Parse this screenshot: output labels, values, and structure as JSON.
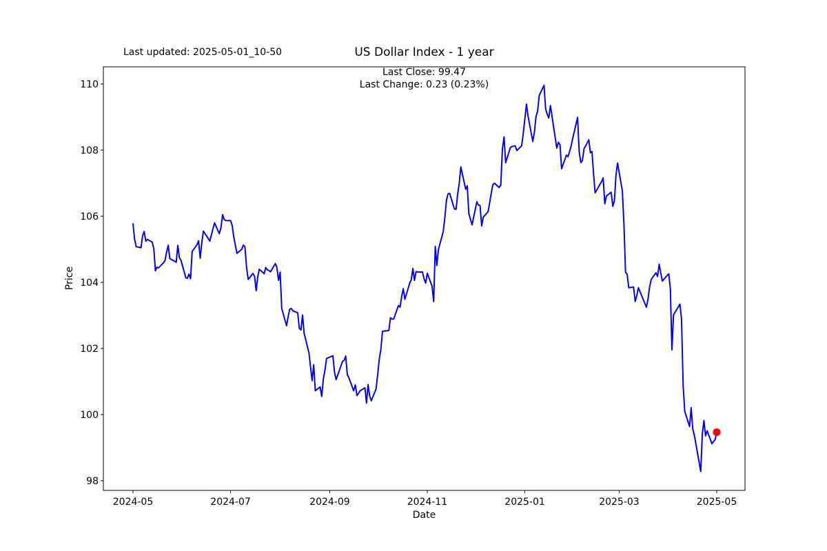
{
  "figure": {
    "last_updated": "Last updated: 2025-05-01_10-50",
    "title": "US Dollar Index - 1 year",
    "annotation_close": "Last Close: 99.47",
    "annotation_change": "Last Change: 0.23 (0.23%)"
  },
  "chart_data": {
    "type": "line",
    "title": "US Dollar Index - 1 year",
    "xlabel": "Date",
    "ylabel": "Price",
    "legend": "none",
    "grid": false,
    "line_color": "#0000ff",
    "last_point_marker_color": "#ff0000",
    "last_close": 99.47,
    "last_change": 0.23,
    "last_change_pct": "0.23%",
    "ylim": [
      97.7,
      110.5
    ],
    "xlim": [
      "2024-04-12",
      "2025-05-19"
    ],
    "y_ticks": [
      98,
      100,
      102,
      104,
      106,
      108,
      110
    ],
    "x_ticks": [
      {
        "date": "2024-05-01",
        "label": "2024-05"
      },
      {
        "date": "2024-07-01",
        "label": "2024-07"
      },
      {
        "date": "2024-09-01",
        "label": "2024-09"
      },
      {
        "date": "2024-11-01",
        "label": "2024-11"
      },
      {
        "date": "2025-01-01",
        "label": "2025-01"
      },
      {
        "date": "2025-03-01",
        "label": "2025-03"
      },
      {
        "date": "2025-05-01",
        "label": "2025-05"
      }
    ],
    "series": [
      {
        "name": "US Dollar Index",
        "points": [
          [
            "2024-05-01",
            105.77
          ],
          [
            "2024-05-02",
            105.31
          ],
          [
            "2024-05-03",
            105.08
          ],
          [
            "2024-05-06",
            105.05
          ],
          [
            "2024-05-07",
            105.41
          ],
          [
            "2024-05-08",
            105.54
          ],
          [
            "2024-05-09",
            105.25
          ],
          [
            "2024-05-10",
            105.3
          ],
          [
            "2024-05-13",
            105.22
          ],
          [
            "2024-05-14",
            105.02
          ],
          [
            "2024-05-15",
            104.35
          ],
          [
            "2024-05-16",
            104.46
          ],
          [
            "2024-05-17",
            104.44
          ],
          [
            "2024-05-20",
            104.59
          ],
          [
            "2024-05-21",
            104.66
          ],
          [
            "2024-05-22",
            104.91
          ],
          [
            "2024-05-23",
            105.12
          ],
          [
            "2024-05-24",
            104.72
          ],
          [
            "2024-05-28",
            104.61
          ],
          [
            "2024-05-29",
            105.12
          ],
          [
            "2024-05-30",
            104.75
          ],
          [
            "2024-05-31",
            104.67
          ],
          [
            "2024-06-03",
            104.14
          ],
          [
            "2024-06-04",
            104.12
          ],
          [
            "2024-06-05",
            104.25
          ],
          [
            "2024-06-06",
            104.11
          ],
          [
            "2024-06-07",
            104.94
          ],
          [
            "2024-06-10",
            105.14
          ],
          [
            "2024-06-11",
            105.26
          ],
          [
            "2024-06-12",
            104.73
          ],
          [
            "2024-06-13",
            105.2
          ],
          [
            "2024-06-14",
            105.55
          ],
          [
            "2024-06-17",
            105.33
          ],
          [
            "2024-06-18",
            105.25
          ],
          [
            "2024-06-20",
            105.62
          ],
          [
            "2024-06-21",
            105.8
          ],
          [
            "2024-06-24",
            105.47
          ],
          [
            "2024-06-25",
            105.65
          ],
          [
            "2024-06-26",
            106.05
          ],
          [
            "2024-06-27",
            105.9
          ],
          [
            "2024-06-28",
            105.87
          ],
          [
            "2024-07-01",
            105.87
          ],
          [
            "2024-07-02",
            105.72
          ],
          [
            "2024-07-03",
            105.38
          ],
          [
            "2024-07-05",
            104.88
          ],
          [
            "2024-07-08",
            105.0
          ],
          [
            "2024-07-09",
            105.13
          ],
          [
            "2024-07-10",
            105.08
          ],
          [
            "2024-07-11",
            104.45
          ],
          [
            "2024-07-12",
            104.09
          ],
          [
            "2024-07-15",
            104.27
          ],
          [
            "2024-07-16",
            104.18
          ],
          [
            "2024-07-17",
            103.75
          ],
          [
            "2024-07-18",
            104.17
          ],
          [
            "2024-07-19",
            104.4
          ],
          [
            "2024-07-22",
            104.26
          ],
          [
            "2024-07-23",
            104.45
          ],
          [
            "2024-07-24",
            104.38
          ],
          [
            "2024-07-25",
            104.36
          ],
          [
            "2024-07-26",
            104.32
          ],
          [
            "2024-07-29",
            104.57
          ],
          [
            "2024-07-30",
            104.45
          ],
          [
            "2024-07-31",
            104.06
          ],
          [
            "2024-08-01",
            104.31
          ],
          [
            "2024-08-02",
            103.21
          ],
          [
            "2024-08-05",
            102.69
          ],
          [
            "2024-08-06",
            102.96
          ],
          [
            "2024-08-07",
            103.19
          ],
          [
            "2024-08-08",
            103.21
          ],
          [
            "2024-08-09",
            103.14
          ],
          [
            "2024-08-12",
            103.08
          ],
          [
            "2024-08-13",
            102.61
          ],
          [
            "2024-08-14",
            102.56
          ],
          [
            "2024-08-15",
            103.01
          ],
          [
            "2024-08-16",
            102.46
          ],
          [
            "2024-08-19",
            101.87
          ],
          [
            "2024-08-20",
            101.44
          ],
          [
            "2024-08-21",
            101.03
          ],
          [
            "2024-08-22",
            101.51
          ],
          [
            "2024-08-23",
            100.72
          ],
          [
            "2024-08-26",
            100.84
          ],
          [
            "2024-08-27",
            100.55
          ],
          [
            "2024-08-28",
            101.06
          ],
          [
            "2024-08-29",
            101.34
          ],
          [
            "2024-08-30",
            101.7
          ],
          [
            "2024-09-03",
            101.78
          ],
          [
            "2024-09-04",
            101.28
          ],
          [
            "2024-09-05",
            101.06
          ],
          [
            "2024-09-06",
            101.19
          ],
          [
            "2024-09-09",
            101.61
          ],
          [
            "2024-09-10",
            101.64
          ],
          [
            "2024-09-11",
            101.77
          ],
          [
            "2024-09-12",
            101.21
          ],
          [
            "2024-09-13",
            101.11
          ],
          [
            "2024-09-16",
            100.72
          ],
          [
            "2024-09-17",
            100.9
          ],
          [
            "2024-09-18",
            100.58
          ],
          [
            "2024-09-19",
            100.64
          ],
          [
            "2024-09-20",
            100.72
          ],
          [
            "2024-09-23",
            100.81
          ],
          [
            "2024-09-24",
            100.35
          ],
          [
            "2024-09-25",
            100.91
          ],
          [
            "2024-09-26",
            100.56
          ],
          [
            "2024-09-27",
            100.42
          ],
          [
            "2024-09-30",
            100.78
          ],
          [
            "2024-10-01",
            101.2
          ],
          [
            "2024-10-02",
            101.69
          ],
          [
            "2024-10-03",
            101.98
          ],
          [
            "2024-10-04",
            102.52
          ],
          [
            "2024-10-07",
            102.54
          ],
          [
            "2024-10-08",
            102.55
          ],
          [
            "2024-10-09",
            102.93
          ],
          [
            "2024-10-10",
            102.89
          ],
          [
            "2024-10-11",
            102.89
          ],
          [
            "2024-10-14",
            103.3
          ],
          [
            "2024-10-15",
            103.25
          ],
          [
            "2024-10-16",
            103.58
          ],
          [
            "2024-10-17",
            103.81
          ],
          [
            "2024-10-18",
            103.49
          ],
          [
            "2024-10-21",
            103.98
          ],
          [
            "2024-10-22",
            104.08
          ],
          [
            "2024-10-23",
            104.42
          ],
          [
            "2024-10-24",
            104.06
          ],
          [
            "2024-10-25",
            104.32
          ],
          [
            "2024-10-28",
            104.31
          ],
          [
            "2024-10-29",
            104.32
          ],
          [
            "2024-10-30",
            104.11
          ],
          [
            "2024-10-31",
            103.98
          ],
          [
            "2024-11-01",
            104.28
          ],
          [
            "2024-11-04",
            103.89
          ],
          [
            "2024-11-05",
            103.42
          ],
          [
            "2024-11-06",
            105.09
          ],
          [
            "2024-11-07",
            104.51
          ],
          [
            "2024-11-08",
            105.0
          ],
          [
            "2024-11-11",
            105.54
          ],
          [
            "2024-11-12",
            105.96
          ],
          [
            "2024-11-13",
            106.48
          ],
          [
            "2024-11-14",
            106.68
          ],
          [
            "2024-11-15",
            106.69
          ],
          [
            "2024-11-18",
            106.22
          ],
          [
            "2024-11-19",
            106.21
          ],
          [
            "2024-11-20",
            106.67
          ],
          [
            "2024-11-21",
            107.0
          ],
          [
            "2024-11-22",
            107.49
          ],
          [
            "2024-11-25",
            106.82
          ],
          [
            "2024-11-26",
            106.92
          ],
          [
            "2024-11-27",
            106.08
          ],
          [
            "2024-11-29",
            105.74
          ],
          [
            "2024-12-02",
            106.44
          ],
          [
            "2024-12-03",
            106.34
          ],
          [
            "2024-12-04",
            106.32
          ],
          [
            "2024-12-05",
            105.71
          ],
          [
            "2024-12-06",
            105.97
          ],
          [
            "2024-12-09",
            106.14
          ],
          [
            "2024-12-10",
            106.4
          ],
          [
            "2024-12-11",
            106.7
          ],
          [
            "2024-12-12",
            106.95
          ],
          [
            "2024-12-13",
            107.0
          ],
          [
            "2024-12-16",
            106.87
          ],
          [
            "2024-12-17",
            106.95
          ],
          [
            "2024-12-18",
            108.03
          ],
          [
            "2024-12-19",
            108.4
          ],
          [
            "2024-12-20",
            107.62
          ],
          [
            "2024-12-23",
            108.08
          ],
          [
            "2024-12-24",
            108.11
          ],
          [
            "2024-12-26",
            108.13
          ],
          [
            "2024-12-27",
            107.99
          ],
          [
            "2024-12-30",
            108.13
          ],
          [
            "2024-12-31",
            108.49
          ],
          [
            "2025-01-02",
            109.39
          ],
          [
            "2025-01-03",
            109.03
          ],
          [
            "2025-01-06",
            108.26
          ],
          [
            "2025-01-07",
            108.55
          ],
          [
            "2025-01-08",
            109.02
          ],
          [
            "2025-01-09",
            109.18
          ],
          [
            "2025-01-10",
            109.65
          ],
          [
            "2025-01-13",
            109.96
          ],
          [
            "2025-01-14",
            109.25
          ],
          [
            "2025-01-15",
            109.09
          ],
          [
            "2025-01-16",
            108.97
          ],
          [
            "2025-01-17",
            109.35
          ],
          [
            "2025-01-21",
            108.06
          ],
          [
            "2025-01-22",
            108.24
          ],
          [
            "2025-01-23",
            108.16
          ],
          [
            "2025-01-24",
            107.44
          ],
          [
            "2025-01-27",
            107.85
          ],
          [
            "2025-01-28",
            107.8
          ],
          [
            "2025-01-29",
            107.96
          ],
          [
            "2025-01-30",
            108.13
          ],
          [
            "2025-01-31",
            108.37
          ],
          [
            "2025-02-03",
            108.99
          ],
          [
            "2025-02-04",
            107.96
          ],
          [
            "2025-02-05",
            107.62
          ],
          [
            "2025-02-06",
            107.69
          ],
          [
            "2025-02-07",
            108.04
          ],
          [
            "2025-02-10",
            108.31
          ],
          [
            "2025-02-11",
            107.92
          ],
          [
            "2025-02-12",
            107.96
          ],
          [
            "2025-02-13",
            107.28
          ],
          [
            "2025-02-14",
            106.71
          ],
          [
            "2025-02-18",
            107.05
          ],
          [
            "2025-02-19",
            107.16
          ],
          [
            "2025-02-20",
            106.38
          ],
          [
            "2025-02-21",
            106.61
          ],
          [
            "2025-02-24",
            106.73
          ],
          [
            "2025-02-25",
            106.3
          ],
          [
            "2025-02-26",
            106.46
          ],
          [
            "2025-02-27",
            107.24
          ],
          [
            "2025-02-28",
            107.61
          ],
          [
            "2025-03-03",
            106.76
          ],
          [
            "2025-03-04",
            105.74
          ],
          [
            "2025-03-05",
            104.3
          ],
          [
            "2025-03-06",
            104.25
          ],
          [
            "2025-03-07",
            103.84
          ],
          [
            "2025-03-10",
            103.86
          ],
          [
            "2025-03-11",
            103.42
          ],
          [
            "2025-03-12",
            103.6
          ],
          [
            "2025-03-13",
            103.84
          ],
          [
            "2025-03-14",
            103.72
          ],
          [
            "2025-03-17",
            103.37
          ],
          [
            "2025-03-18",
            103.25
          ],
          [
            "2025-03-19",
            103.48
          ],
          [
            "2025-03-20",
            103.85
          ],
          [
            "2025-03-21",
            104.09
          ],
          [
            "2025-03-24",
            104.29
          ],
          [
            "2025-03-25",
            104.18
          ],
          [
            "2025-03-26",
            104.55
          ],
          [
            "2025-03-27",
            104.28
          ],
          [
            "2025-03-28",
            104.04
          ],
          [
            "2025-03-31",
            104.21
          ],
          [
            "2025-04-01",
            104.26
          ],
          [
            "2025-04-02",
            103.81
          ],
          [
            "2025-04-03",
            101.96
          ],
          [
            "2025-04-04",
            103.02
          ],
          [
            "2025-04-07",
            103.26
          ],
          [
            "2025-04-08",
            103.34
          ],
          [
            "2025-04-09",
            102.9
          ],
          [
            "2025-04-10",
            100.87
          ],
          [
            "2025-04-11",
            100.1
          ],
          [
            "2025-04-14",
            99.64
          ],
          [
            "2025-04-15",
            100.21
          ],
          [
            "2025-04-16",
            99.57
          ],
          [
            "2025-04-17",
            99.38
          ],
          [
            "2025-04-21",
            98.28
          ],
          [
            "2025-04-22",
            99.41
          ],
          [
            "2025-04-23",
            99.82
          ],
          [
            "2025-04-24",
            99.36
          ],
          [
            "2025-04-25",
            99.51
          ],
          [
            "2025-04-28",
            99.12
          ],
          [
            "2025-04-29",
            99.19
          ],
          [
            "2025-04-30",
            99.24
          ],
          [
            "2025-05-01",
            99.47
          ]
        ]
      }
    ]
  }
}
